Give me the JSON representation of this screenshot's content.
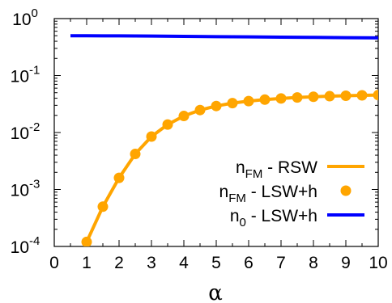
{
  "chart_data": {
    "type": "line",
    "title": "",
    "xlabel": "α",
    "ylabel": "",
    "xlim": [
      0,
      10
    ],
    "ylim": [
      0.0001,
      1
    ],
    "yscale": "log",
    "grid": false,
    "legend_position": "bottom-right",
    "x_ticks": [
      "0",
      "1",
      "2",
      "3",
      "4",
      "5",
      "6",
      "7",
      "8",
      "9",
      "10"
    ],
    "y_ticks": [
      {
        "value": 1,
        "base": "10",
        "exp": "0"
      },
      {
        "value": 0.1,
        "base": "10",
        "exp": "-1"
      },
      {
        "value": 0.01,
        "base": "10",
        "exp": "-2"
      },
      {
        "value": 0.001,
        "base": "10",
        "exp": "-3"
      },
      {
        "value": 0.0001,
        "base": "10",
        "exp": "-4"
      }
    ],
    "series": [
      {
        "name": "n_FM - RSW",
        "legend": {
          "base": "n",
          "sub": "FM",
          "rest": " - RSW"
        },
        "style": "line",
        "color": "#FFA500",
        "x": [
          0.9,
          1.0,
          1.5,
          2.0,
          2.5,
          3.0,
          3.5,
          4.0,
          4.5,
          5.0,
          5.5,
          6.0,
          6.5,
          7.0,
          7.5,
          8.0,
          8.5,
          9.0,
          9.5,
          10.0
        ],
        "y": [
          8e-05,
          0.00012,
          0.0005,
          0.0016,
          0.0042,
          0.0085,
          0.0138,
          0.0195,
          0.0248,
          0.0292,
          0.0328,
          0.0356,
          0.0378,
          0.0396,
          0.0412,
          0.0424,
          0.0434,
          0.0442,
          0.0449,
          0.0454
        ]
      },
      {
        "name": "n_FM - LSW+h",
        "legend": {
          "base": "n",
          "sub": "FM",
          "rest": " - LSW+h"
        },
        "style": "points",
        "color": "#FFA500",
        "x": [
          1.0,
          1.5,
          2.0,
          2.5,
          3.0,
          3.5,
          4.0,
          4.5,
          5.0,
          5.5,
          6.0,
          6.5,
          7.0,
          7.5,
          8.0,
          8.5,
          9.0,
          9.5,
          10.0
        ],
        "y": [
          0.00012,
          0.0005,
          0.0016,
          0.0042,
          0.0085,
          0.0138,
          0.0195,
          0.0248,
          0.0292,
          0.0328,
          0.0356,
          0.0378,
          0.0396,
          0.0412,
          0.0424,
          0.0434,
          0.0442,
          0.0449,
          0.0454
        ]
      },
      {
        "name": "n_0 - LSW+h",
        "legend": {
          "base": "n",
          "sub": "0",
          "rest": " - LSW+h"
        },
        "style": "line",
        "color": "#0000FF",
        "x": [
          0.5,
          1.0,
          2.0,
          3.0,
          4.0,
          5.0,
          6.0,
          7.0,
          8.0,
          9.0,
          10.0
        ],
        "y": [
          0.5,
          0.5,
          0.497,
          0.493,
          0.488,
          0.482,
          0.477,
          0.472,
          0.467,
          0.462,
          0.458
        ]
      }
    ]
  }
}
